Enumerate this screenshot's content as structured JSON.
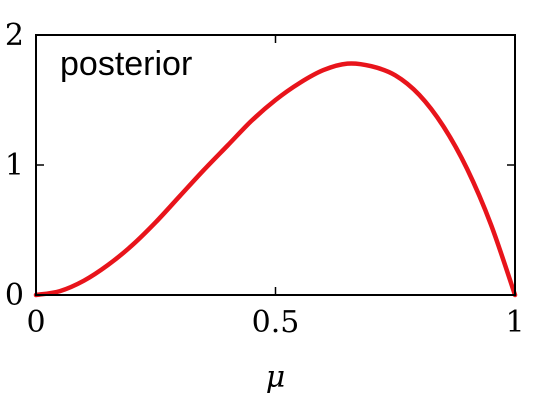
{
  "chart_data": {
    "type": "line",
    "title": "",
    "xlabel": "μ",
    "ylabel": "",
    "xlim": [
      0,
      1
    ],
    "ylim": [
      0,
      2
    ],
    "x_ticks": [
      0,
      0.5,
      1
    ],
    "x_tick_labels": [
      "0",
      "0.5",
      "1"
    ],
    "y_ticks": [
      0,
      1,
      2
    ],
    "y_tick_labels": [
      "0",
      "1",
      "2"
    ],
    "grid": false,
    "annotation": "posterior",
    "series": [
      {
        "color": "#e8141b",
        "x": [
          0,
          0.05,
          0.1,
          0.15,
          0.2,
          0.25,
          0.3,
          0.35,
          0.4,
          0.45,
          0.5,
          0.55,
          0.6,
          0.65,
          0.7,
          0.75,
          0.8,
          0.85,
          0.9,
          0.95,
          1
        ],
        "y": [
          0,
          0.03,
          0.11,
          0.23,
          0.38,
          0.56,
          0.76,
          0.96,
          1.15,
          1.34,
          1.5,
          1.63,
          1.73,
          1.78,
          1.76,
          1.69,
          1.54,
          1.3,
          0.97,
          0.54,
          0
        ]
      }
    ]
  }
}
